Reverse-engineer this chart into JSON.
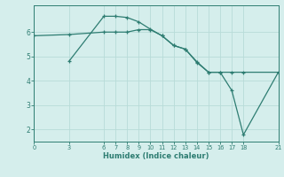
{
  "xlabel": "Humidex (Indice chaleur)",
  "background_color": "#d5eeec",
  "line_color": "#2e7d72",
  "grid_color": "#b8dbd8",
  "x_ticks": [
    0,
    3,
    6,
    7,
    8,
    9,
    10,
    11,
    12,
    13,
    14,
    15,
    16,
    17,
    18,
    21
  ],
  "xlim": [
    0,
    21
  ],
  "ylim": [
    1.5,
    7.1
  ],
  "y_ticks": [
    2,
    3,
    4,
    5,
    6
  ],
  "line1_x": [
    0,
    3,
    6,
    7,
    8,
    9,
    10,
    11,
    12,
    13,
    14,
    15,
    16,
    17,
    18,
    21
  ],
  "line1_y": [
    5.85,
    5.9,
    6.0,
    6.0,
    6.0,
    6.1,
    6.1,
    5.85,
    5.45,
    5.3,
    4.75,
    4.35,
    4.35,
    4.35,
    4.35,
    4.35
  ],
  "line2_x": [
    3,
    6,
    7,
    8,
    9,
    10,
    11,
    12,
    13,
    14,
    15,
    16,
    17,
    18,
    21
  ],
  "line2_y": [
    4.8,
    6.65,
    6.65,
    6.6,
    6.42,
    6.12,
    5.85,
    5.45,
    5.3,
    4.78,
    4.35,
    4.35,
    3.6,
    1.78,
    4.35
  ]
}
